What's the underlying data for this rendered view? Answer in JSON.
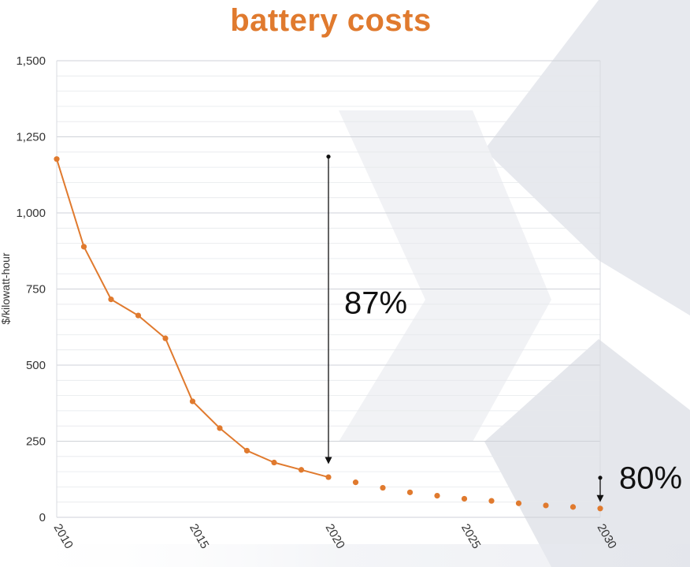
{
  "chart_data": {
    "type": "line",
    "title": "battery costs",
    "xlabel": "",
    "ylabel": "$/kilowatt-hour",
    "xlim": [
      2010,
      2030
    ],
    "ylim": [
      0,
      1500
    ],
    "x_ticks": [
      "2010",
      "2015",
      "2020",
      "2025",
      "2030"
    ],
    "y_ticks": [
      "0",
      "250",
      "500",
      "750",
      "1,000",
      "1,250",
      "1,500"
    ],
    "grid": true,
    "series": [
      {
        "style": "solid-line-with-markers",
        "x": [
          2010,
          2011,
          2012,
          2013,
          2014,
          2015,
          2016,
          2017,
          2018,
          2019,
          2020
        ],
        "values": [
          1177,
          889,
          716,
          663,
          588,
          381,
          293,
          219,
          180,
          156,
          132
        ]
      },
      {
        "style": "markers-only",
        "x": [
          2021,
          2022,
          2023,
          2024,
          2025,
          2026,
          2027,
          2028,
          2029,
          2030
        ],
        "values": [
          115,
          97,
          82,
          71,
          61,
          54,
          46,
          39,
          34,
          29
        ]
      }
    ],
    "annotations": [
      {
        "label": "87%",
        "x": 2020,
        "from": 1185,
        "to": 175
      },
      {
        "label": "80%",
        "x": 2030,
        "from": 130,
        "to": 50
      }
    ],
    "colors": {
      "title": "#e07a2e",
      "series": "#e07a2e",
      "axis_text": "#333333",
      "annotation": "#111111"
    }
  }
}
